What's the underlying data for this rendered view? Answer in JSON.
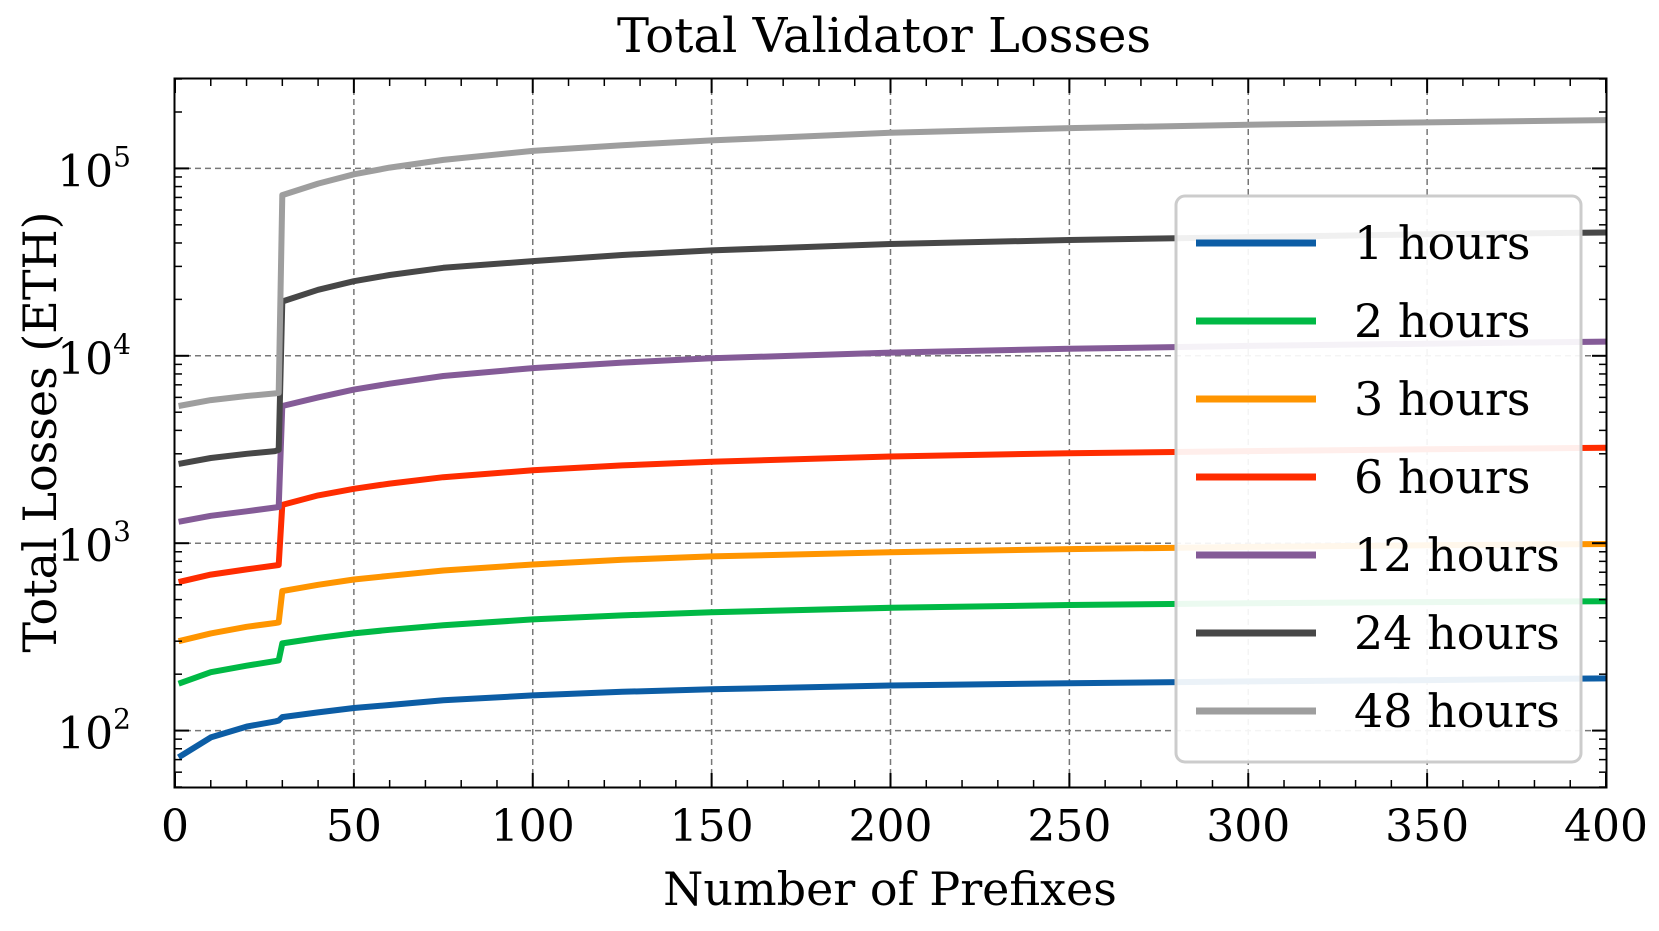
{
  "chart_data": {
    "type": "line",
    "title": "Total Validator Losses",
    "xlabel": "Number of Prefixes",
    "ylabel": "Total Losses (ETH)",
    "xlim": [
      0,
      400
    ],
    "ylim": [
      50,
      300000
    ],
    "yscale": "log",
    "grid": true,
    "legend_position": "right",
    "x_ticks": [
      0,
      50,
      100,
      150,
      200,
      250,
      300,
      350,
      400
    ],
    "x_tick_labels": [
      "0",
      "50",
      "100",
      "150",
      "200",
      "250",
      "300",
      "350",
      "400"
    ],
    "y_ticks": [
      {
        "value": 100,
        "base": "10",
        "exp": "2"
      },
      {
        "value": 1000,
        "base": "10",
        "exp": "3"
      },
      {
        "value": 10000,
        "base": "10",
        "exp": "4"
      },
      {
        "value": 100000,
        "base": "10",
        "exp": "5"
      }
    ],
    "x": [
      1,
      10,
      20,
      28,
      29,
      30,
      40,
      50,
      60,
      75,
      100,
      125,
      150,
      200,
      250,
      300,
      350,
      400
    ],
    "series": [
      {
        "name": "1 hours",
        "color": "#0C5DA5",
        "values": [
          72,
          92,
          105,
          112,
          113,
          118,
          125,
          132,
          137,
          145,
          154,
          161,
          166,
          174,
          179,
          183,
          186,
          190
        ]
      },
      {
        "name": "2 hours",
        "color": "#00B945",
        "values": [
          178,
          205,
          222,
          235,
          237,
          292,
          312,
          330,
          345,
          365,
          392,
          412,
          428,
          452,
          468,
          478,
          485,
          490
        ]
      },
      {
        "name": "3 hours",
        "color": "#FF9500",
        "values": [
          300,
          330,
          358,
          375,
          378,
          555,
          600,
          640,
          670,
          715,
          770,
          815,
          850,
          895,
          930,
          955,
          975,
          990
        ]
      },
      {
        "name": "6 hours",
        "color": "#FF2C00",
        "values": [
          620,
          680,
          725,
          760,
          765,
          1600,
          1800,
          1950,
          2080,
          2250,
          2450,
          2600,
          2720,
          2900,
          3020,
          3100,
          3170,
          3230
        ]
      },
      {
        "name": "12 hours",
        "color": "#845B97",
        "values": [
          1300,
          1400,
          1480,
          1550,
          1560,
          5400,
          6000,
          6600,
          7100,
          7800,
          8600,
          9200,
          9700,
          10400,
          10900,
          11300,
          11600,
          11900
        ]
      },
      {
        "name": "24 hours",
        "color": "#474747",
        "values": [
          2650,
          2850,
          3000,
          3100,
          3150,
          19500,
          22500,
          25000,
          27000,
          29500,
          32000,
          34500,
          36500,
          39500,
          41500,
          43000,
          44500,
          45500
        ]
      },
      {
        "name": "48 hours",
        "color": "#9E9E9E",
        "values": [
          5400,
          5800,
          6100,
          6300,
          6350,
          72000,
          83000,
          93000,
          101000,
          111000,
          124000,
          133000,
          141000,
          155000,
          164000,
          171000,
          176000,
          181000
        ]
      }
    ]
  }
}
